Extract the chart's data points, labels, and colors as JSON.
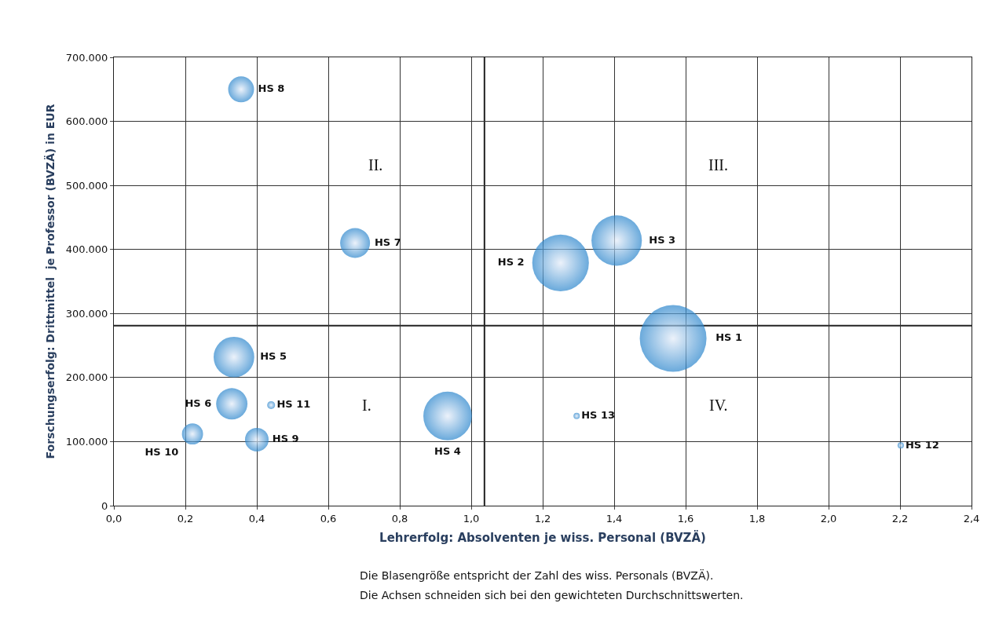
{
  "chart_data": {
    "type": "bubble",
    "xlabel": "Lehrerfolg: Absolventen je wiss. Personal (BVZÄ)",
    "ylabel": "Forschungserfolg: Drittmittel  je Professor (BVZÄ) in EUR",
    "x": [
      1.565,
      1.25,
      1.407,
      0.934,
      0.336,
      0.33,
      0.675,
      0.356,
      0.4,
      0.22,
      0.44,
      2.202,
      1.295
    ],
    "series": [
      {
        "color": "#2a85cc",
        "values": [
          261000,
          379000,
          414000,
          140000,
          232000,
          159000,
          410000,
          650000,
          103000,
          112000,
          157000,
          94000,
          140000
        ],
        "sizes": [
          1,
          0.72,
          0.57,
          0.53,
          0.37,
          0.22,
          0.2,
          0.15,
          0.125,
          0.1,
          0.014,
          0.009,
          0.005
        ],
        "value_labels": [
          "HS 1",
          "HS 2",
          "HS 3",
          "HS 4",
          "HS 5",
          "HS 6",
          "HS 7",
          "HS 8",
          "HS 9",
          "HS 10",
          "HS 11",
          "HS 12",
          "HS 13"
        ]
      }
    ],
    "xlim": [
      0,
      2.4
    ],
    "xticks": [
      {
        "value": 0,
        "label": "0,0"
      },
      {
        "value": 0.2,
        "label": "0,2"
      },
      {
        "value": 0.4,
        "label": "0,4"
      },
      {
        "value": 0.6,
        "label": "0,6"
      },
      {
        "value": 0.8,
        "label": "0,8"
      },
      {
        "value": 1.0,
        "label": "1,0"
      },
      {
        "value": 1.2,
        "label": "1,2"
      },
      {
        "value": 1.4,
        "label": "1,4"
      },
      {
        "value": 1.6,
        "label": "1,6"
      },
      {
        "value": 1.8,
        "label": "1,8"
      },
      {
        "value": 2.0,
        "label": "2,0"
      },
      {
        "value": 2.2,
        "label": "2,2"
      },
      {
        "value": 2.4,
        "label": "2,4"
      }
    ],
    "ylim": [
      0,
      700000
    ],
    "yticks": [
      0,
      {
        "value": 100000,
        "label": "100.000"
      },
      {
        "value": 200000,
        "label": "200.000"
      },
      {
        "value": 300000,
        "label": "300.000"
      },
      {
        "value": 400000,
        "label": "400.000"
      },
      {
        "value": 500000,
        "label": "500.000"
      },
      {
        "value": 600000,
        "label": "600.000"
      },
      {
        "value": 700000,
        "label": "700.000"
      }
    ],
    "ref_lines": [
      {
        "axis": "x",
        "value": 1.037,
        "color": "#222222"
      },
      {
        "axis": "y",
        "value": 281000,
        "color": "#222222"
      }
    ],
    "annotations": [
      "I.",
      "II.",
      "III.",
      "IV.",
      "Die Blasengröße entspricht der Zahl des wiss. Personals (BVZÄ).",
      "Die Achsen schneiden sich bei den gewichteten Durchschnittswerten."
    ],
    "grid": true
  }
}
